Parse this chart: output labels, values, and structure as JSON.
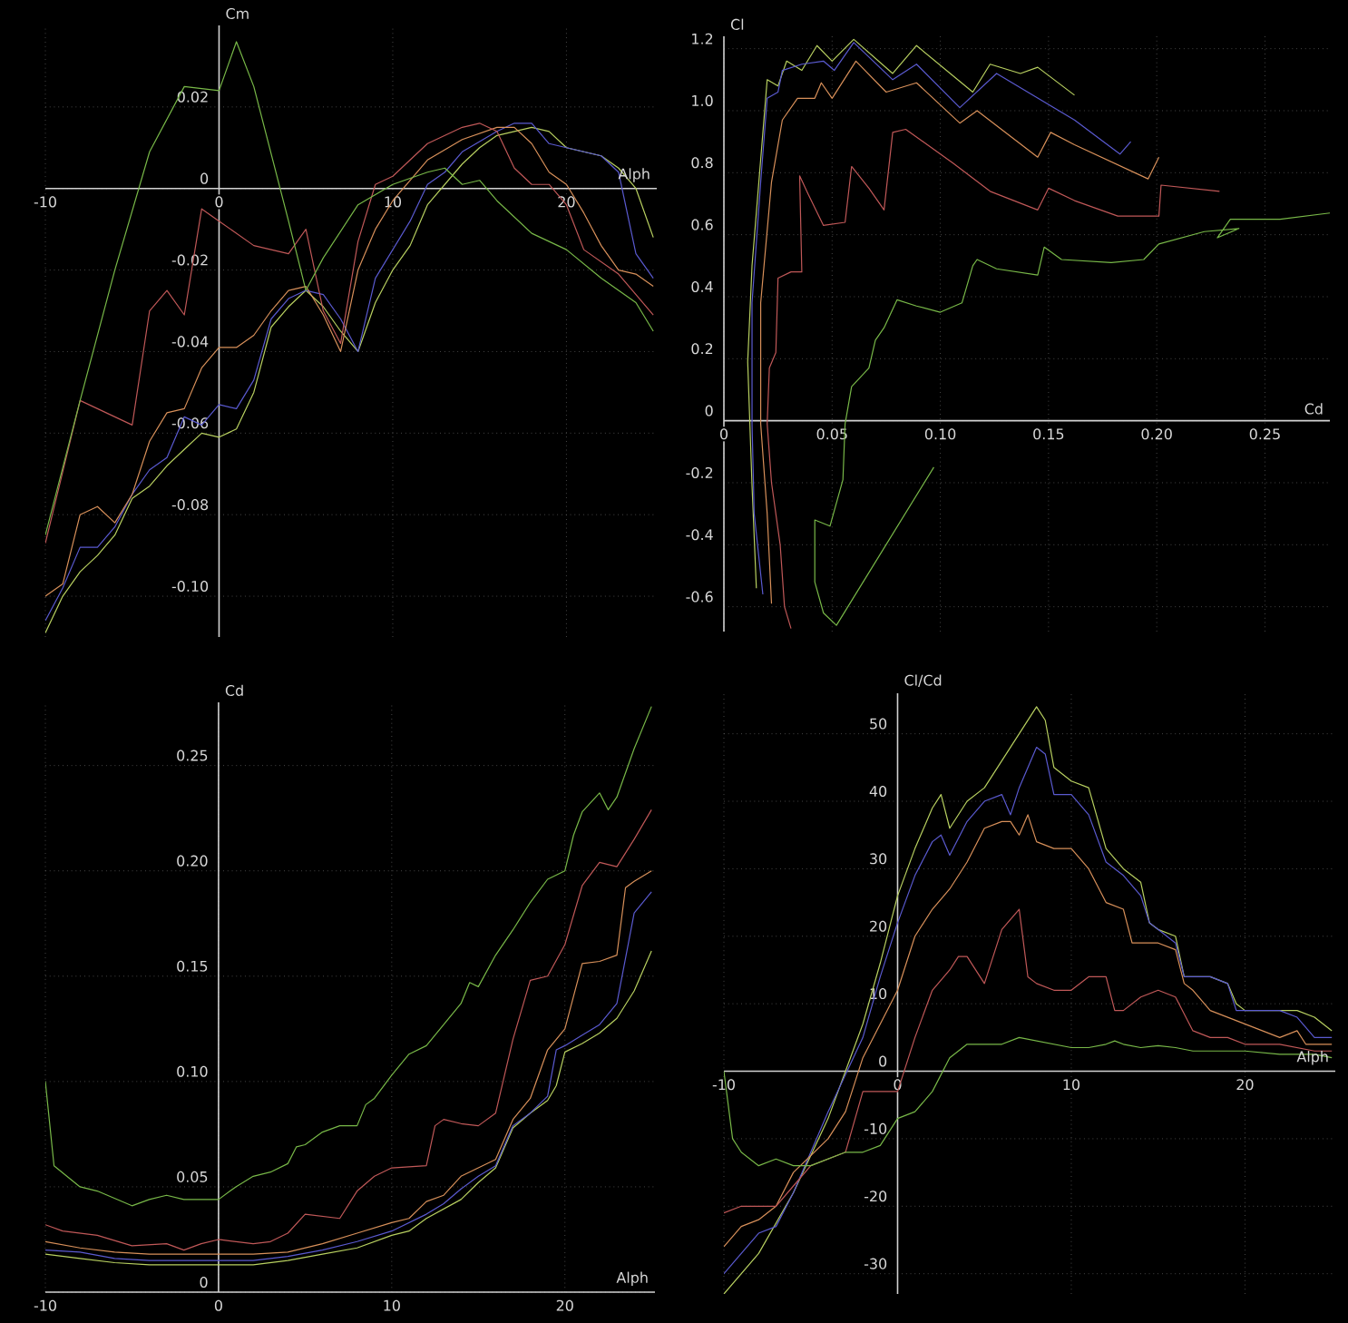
{
  "chart_data": [
    {
      "type": "line",
      "xlabel": "Alph",
      "ylabel": "Cm",
      "xlim": [
        -10,
        25.2
      ],
      "ylim": [
        -0.11,
        0.04
      ],
      "grid": true,
      "xticks": [
        -10,
        0,
        10,
        20
      ],
      "yticks": [
        0.02,
        0,
        -0.02,
        -0.04,
        -0.06,
        -0.08,
        {
          "value": -0.1,
          "label": "-0.10"
        }
      ],
      "series": [
        {
          "color": "#b8d060",
          "x": [
            -10,
            -9,
            -8,
            -7,
            -6,
            -5,
            -4,
            -3,
            -2,
            -1,
            0,
            1,
            2,
            3,
            4,
            5,
            6,
            7,
            8,
            9,
            10,
            11,
            12,
            13,
            14,
            15,
            16,
            17,
            18,
            19,
            20,
            22,
            23,
            24,
            25
          ],
          "values": [
            -0.109,
            -0.1,
            -0.094,
            -0.09,
            -0.085,
            -0.076,
            -0.073,
            -0.068,
            -0.064,
            -0.06,
            -0.061,
            -0.059,
            -0.05,
            -0.034,
            -0.029,
            -0.025,
            -0.029,
            -0.035,
            -0.04,
            -0.028,
            -0.02,
            -0.014,
            -0.004,
            0.001,
            0.006,
            0.01,
            0.013,
            0.014,
            0.015,
            0.014,
            0.01,
            0.008,
            0.005,
            0,
            -0.012
          ]
        },
        {
          "color": "#5a5ad0",
          "x": [
            -10,
            -9,
            -8,
            -7,
            -6,
            -5,
            -4,
            -3,
            -2,
            -1,
            0,
            1,
            2,
            3,
            4,
            5,
            6,
            7,
            8,
            9,
            10,
            11,
            12,
            13,
            14,
            16,
            17,
            18,
            19,
            20,
            22,
            23,
            24,
            25
          ],
          "values": [
            -0.106,
            -0.098,
            -0.088,
            -0.088,
            -0.083,
            -0.075,
            -0.069,
            -0.066,
            -0.056,
            -0.058,
            -0.053,
            -0.054,
            -0.047,
            -0.032,
            -0.027,
            -0.025,
            -0.026,
            -0.032,
            -0.04,
            -0.022,
            -0.015,
            -0.008,
            0.001,
            0.004,
            0.009,
            0.014,
            0.016,
            0.016,
            0.011,
            0.01,
            0.008,
            0.004,
            -0.016,
            -0.022
          ]
        },
        {
          "color": "#d8905a",
          "x": [
            -10,
            -9,
            -8,
            -7,
            -6,
            -5,
            -4,
            -3,
            -2,
            -1,
            0,
            1,
            2,
            3,
            4,
            5,
            6,
            7,
            8,
            9,
            10,
            12,
            14,
            16,
            17,
            18,
            19,
            20,
            21,
            22,
            23,
            24,
            25
          ],
          "values": [
            -0.1,
            -0.097,
            -0.08,
            -0.078,
            -0.082,
            -0.075,
            -0.062,
            -0.055,
            -0.054,
            -0.044,
            -0.039,
            -0.039,
            -0.036,
            -0.03,
            -0.025,
            -0.024,
            -0.031,
            -0.04,
            -0.02,
            -0.01,
            -0.003,
            0.007,
            0.012,
            0.015,
            0.015,
            0.011,
            0.004,
            0.001,
            -0.006,
            -0.014,
            -0.02,
            -0.021,
            -0.024
          ]
        },
        {
          "color": "#c05858",
          "x": [
            -10,
            -8,
            -6,
            -5,
            -4,
            -3,
            -2,
            -1,
            0,
            2,
            4,
            5,
            6,
            7,
            8,
            9,
            10,
            12,
            14,
            15,
            16,
            17,
            18,
            19,
            20,
            21,
            23,
            25
          ],
          "values": [
            -0.087,
            -0.052,
            -0.056,
            -0.058,
            -0.03,
            -0.025,
            -0.031,
            -0.005,
            -0.008,
            -0.014,
            -0.016,
            -0.01,
            -0.03,
            -0.038,
            -0.013,
            0.001,
            0.003,
            0.011,
            0.015,
            0.016,
            0.014,
            0.005,
            0.001,
            0.001,
            -0.004,
            -0.015,
            -0.021,
            -0.031
          ]
        },
        {
          "color": "#78b848",
          "x": [
            -10,
            -8,
            -6,
            -4,
            -2,
            0,
            1,
            2,
            4,
            5,
            6,
            8,
            10,
            12,
            13,
            14,
            15,
            16,
            18,
            20,
            22,
            24,
            25
          ],
          "values": [
            -0.085,
            -0.052,
            -0.02,
            0.009,
            0.025,
            0.024,
            0.036,
            0.025,
            -0.008,
            -0.025,
            -0.017,
            -0.004,
            0.001,
            0.004,
            0.005,
            0.001,
            0.002,
            -0.003,
            -0.011,
            -0.015,
            -0.022,
            -0.028,
            -0.035
          ]
        }
      ]
    },
    {
      "type": "line",
      "xlabel": "Cd",
      "ylabel": "Cl",
      "xlim": [
        0,
        0.28
      ],
      "ylim": [
        -0.68,
        1.24
      ],
      "grid": true,
      "xticks": [
        0,
        0.05,
        {
          "value": 0.1,
          "label": "0.10"
        },
        0.15,
        {
          "value": 0.2,
          "label": "0.20"
        },
        0.25
      ],
      "yticks": [
        1.2,
        {
          "value": 1.0,
          "label": "1.0"
        },
        0.8,
        0.6,
        0.4,
        0.2,
        0,
        -0.2,
        -0.4,
        -0.6
      ],
      "series": [
        {
          "color": "#b8d060",
          "x": [
            0.015,
            0.013,
            0.011,
            0.013,
            0.02,
            0.025,
            0.029,
            0.036,
            0.043,
            0.05,
            0.06,
            0.078,
            0.089,
            0.115,
            0.123,
            0.137,
            0.145,
            0.162
          ],
          "values": [
            -0.54,
            -0.21,
            0.19,
            0.5,
            1.1,
            1.08,
            1.16,
            1.13,
            1.21,
            1.16,
            1.23,
            1.12,
            1.21,
            1.06,
            1.15,
            1.12,
            1.14,
            1.05
          ]
        },
        {
          "color": "#5a5ad0",
          "x": [
            0.018,
            0.014,
            0.013,
            0.013,
            0.017,
            0.02,
            0.025,
            0.027,
            0.036,
            0.046,
            0.051,
            0.06,
            0.078,
            0.089,
            0.109,
            0.126,
            0.162,
            0.183,
            0.188
          ],
          "values": [
            -0.56,
            -0.3,
            -0.01,
            0.38,
            0.77,
            1.04,
            1.06,
            1.13,
            1.15,
            1.16,
            1.13,
            1.22,
            1.1,
            1.15,
            1.01,
            1.12,
            0.97,
            0.86,
            0.9
          ]
        },
        {
          "color": "#d8905a",
          "x": [
            0.022,
            0.02,
            0.017,
            0.017,
            0.022,
            0.027,
            0.034,
            0.042,
            0.045,
            0.05,
            0.061,
            0.075,
            0.089,
            0.109,
            0.117,
            0.145,
            0.151,
            0.162,
            0.196,
            0.201
          ],
          "values": [
            -0.59,
            -0.3,
            -0.01,
            0.38,
            0.77,
            0.97,
            1.04,
            1.04,
            1.09,
            1.04,
            1.16,
            1.06,
            1.09,
            0.96,
            1.0,
            0.85,
            0.93,
            0.89,
            0.78,
            0.85
          ]
        },
        {
          "color": "#c05858",
          "x": [
            0.031,
            0.028,
            0.026,
            0.022,
            0.02,
            0.021,
            0.024,
            0.025,
            0.031,
            0.036,
            0.035,
            0.039,
            0.046,
            0.056,
            0.059,
            0.067,
            0.074,
            0.078,
            0.084,
            0.106,
            0.123,
            0.145,
            0.15,
            0.162,
            0.182,
            0.201,
            0.202,
            0.229
          ],
          "values": [
            -0.67,
            -0.6,
            -0.4,
            -0.2,
            -0.01,
            0.17,
            0.22,
            0.46,
            0.48,
            0.48,
            0.79,
            0.73,
            0.63,
            0.64,
            0.82,
            0.75,
            0.68,
            0.93,
            0.94,
            0.83,
            0.74,
            0.68,
            0.75,
            0.71,
            0.66,
            0.66,
            0.76,
            0.74
          ]
        },
        {
          "color": "#78b848",
          "x": [
            0.097,
            0.052,
            0.046,
            0.042,
            0.042,
            0.049,
            0.055,
            0.056,
            0.059,
            0.067,
            0.07,
            0.074,
            0.08,
            0.089,
            0.1,
            0.11,
            0.115,
            0.117,
            0.126,
            0.145,
            0.148,
            0.156,
            0.179,
            0.194,
            0.201,
            0.222,
            0.238,
            0.228,
            0.234,
            0.257,
            0.28
          ],
          "values": [
            -0.15,
            -0.66,
            -0.62,
            -0.52,
            -0.32,
            -0.34,
            -0.19,
            -0.01,
            0.11,
            0.17,
            0.26,
            0.3,
            0.39,
            0.37,
            0.35,
            0.38,
            0.5,
            0.52,
            0.49,
            0.47,
            0.56,
            0.52,
            0.51,
            0.52,
            0.57,
            0.61,
            0.62,
            0.59,
            0.65,
            0.65,
            0.67
          ]
        }
      ]
    },
    {
      "type": "line",
      "xlabel": "Alph",
      "ylabel": "Cd",
      "xlim": [
        -10,
        25.2
      ],
      "ylim": [
        0,
        0.28
      ],
      "grid": true,
      "xticks": [
        -10,
        0,
        10,
        20
      ],
      "yticks": [
        0,
        0.05,
        {
          "value": 0.1,
          "label": "0.10"
        },
        0.15,
        {
          "value": 0.2,
          "label": "0.20"
        },
        0.25
      ],
      "series": [
        {
          "color": "#b8d060",
          "x": [
            -10,
            -8,
            -6,
            -4,
            -2,
            0,
            2,
            4,
            6,
            8,
            10,
            11,
            12,
            14,
            15,
            16,
            17,
            18,
            19,
            19.5,
            20,
            21,
            22,
            23,
            24,
            25
          ],
          "values": [
            0.018,
            0.016,
            0.014,
            0.013,
            0.013,
            0.013,
            0.013,
            0.015,
            0.018,
            0.021,
            0.027,
            0.029,
            0.035,
            0.044,
            0.052,
            0.059,
            0.078,
            0.085,
            0.091,
            0.098,
            0.114,
            0.118,
            0.123,
            0.13,
            0.143,
            0.162
          ]
        },
        {
          "color": "#5a5ad0",
          "x": [
            -10,
            -8,
            -6,
            -4,
            -2,
            0,
            2,
            4,
            6,
            8,
            10,
            12,
            13,
            14,
            15,
            16,
            17,
            18,
            19,
            19.5,
            20,
            21,
            22,
            23,
            24,
            25
          ],
          "values": [
            0.02,
            0.019,
            0.016,
            0.015,
            0.015,
            0.015,
            0.015,
            0.017,
            0.02,
            0.024,
            0.029,
            0.037,
            0.042,
            0.049,
            0.055,
            0.06,
            0.079,
            0.085,
            0.093,
            0.115,
            0.117,
            0.122,
            0.127,
            0.137,
            0.18,
            0.19
          ]
        },
        {
          "color": "#d8905a",
          "x": [
            -10,
            -8,
            -6,
            -4,
            -2,
            0,
            2,
            4,
            6,
            8,
            10,
            11,
            12,
            13,
            14,
            15,
            16,
            17,
            18,
            19,
            20,
            21,
            22,
            23,
            23.5,
            24,
            25
          ],
          "values": [
            0.024,
            0.021,
            0.019,
            0.018,
            0.018,
            0.018,
            0.018,
            0.019,
            0.023,
            0.028,
            0.033,
            0.035,
            0.043,
            0.046,
            0.055,
            0.059,
            0.063,
            0.082,
            0.092,
            0.115,
            0.125,
            0.156,
            0.157,
            0.16,
            0.192,
            0.195,
            0.2
          ]
        },
        {
          "color": "#c05858",
          "x": [
            -10,
            -9,
            -7,
            -5,
            -3,
            -2,
            -1,
            0,
            2,
            3,
            4,
            5,
            6,
            7,
            8,
            9,
            10,
            12,
            12.5,
            13,
            14,
            15,
            16,
            17,
            18,
            19,
            20,
            21,
            22,
            23,
            24,
            25
          ],
          "values": [
            0.032,
            0.029,
            0.027,
            0.022,
            0.023,
            0.02,
            0.023,
            0.025,
            0.023,
            0.024,
            0.028,
            0.037,
            0.036,
            0.035,
            0.048,
            0.055,
            0.059,
            0.06,
            0.079,
            0.082,
            0.08,
            0.079,
            0.085,
            0.12,
            0.148,
            0.15,
            0.165,
            0.193,
            0.204,
            0.202,
            0.215,
            0.229
          ]
        },
        {
          "color": "#78b848",
          "x": [
            -10,
            -9.5,
            -8,
            -7,
            -5,
            -4,
            -3,
            -2,
            0,
            1,
            2,
            3,
            4,
            4.5,
            5,
            6,
            7,
            8,
            8.5,
            9,
            10,
            11,
            12,
            13,
            14,
            14.5,
            15,
            16,
            17,
            18,
            19,
            20,
            20.5,
            21,
            22,
            22.5,
            23,
            24,
            25
          ],
          "values": [
            0.1,
            0.06,
            0.05,
            0.048,
            0.041,
            0.044,
            0.046,
            0.044,
            0.044,
            0.05,
            0.055,
            0.057,
            0.061,
            0.069,
            0.07,
            0.076,
            0.079,
            0.079,
            0.089,
            0.092,
            0.103,
            0.113,
            0.117,
            0.127,
            0.137,
            0.147,
            0.145,
            0.16,
            0.172,
            0.185,
            0.196,
            0.2,
            0.217,
            0.228,
            0.237,
            0.229,
            0.235,
            0.258,
            0.278
          ]
        }
      ]
    },
    {
      "type": "line",
      "xlabel": "Alph",
      "ylabel": "Cl/Cd",
      "xlim": [
        -10,
        25.2
      ],
      "ylim": [
        -33,
        56
      ],
      "grid": true,
      "xticks": [
        -10,
        0,
        10,
        20
      ],
      "yticks": [
        50,
        40,
        30,
        20,
        10,
        0,
        -10,
        -20,
        -30
      ],
      "series": [
        {
          "color": "#b8d060",
          "x": [
            -10,
            -8,
            -6,
            -4,
            -3,
            -2,
            -1,
            0,
            1,
            2,
            2.5,
            3,
            4,
            5,
            6,
            7,
            8,
            8.5,
            9,
            10,
            11,
            12,
            13,
            14,
            14.5,
            15,
            16,
            16.5,
            18,
            19,
            19.5,
            20,
            22,
            23,
            24,
            25
          ],
          "values": [
            -33,
            -27,
            -18,
            -7,
            0,
            7,
            16,
            26,
            33,
            39,
            41,
            36,
            40,
            42,
            46,
            50,
            54,
            52,
            45,
            43,
            42,
            33,
            30,
            28,
            22,
            21,
            20,
            14,
            14,
            13,
            10,
            9,
            9,
            9,
            8,
            6
          ]
        },
        {
          "color": "#5a5ad0",
          "x": [
            -10,
            -9,
            -8,
            -7,
            -6,
            -4,
            -2,
            -1,
            0,
            1,
            2,
            2.5,
            3,
            4,
            5,
            6,
            6.5,
            7,
            8,
            8.5,
            9,
            10,
            11,
            12,
            13,
            14,
            14.5,
            15,
            16,
            16.5,
            18,
            19,
            19.5,
            20,
            22,
            23,
            24,
            25
          ],
          "values": [
            -30,
            -27,
            -24,
            -23,
            -18,
            -6,
            5,
            14,
            22,
            29,
            34,
            35,
            32,
            37,
            40,
            41,
            38,
            42,
            48,
            47,
            41,
            41,
            38,
            31,
            29,
            26,
            22,
            21,
            19,
            14,
            14,
            13,
            9,
            9,
            9,
            8,
            5,
            5
          ]
        },
        {
          "color": "#d8905a",
          "x": [
            -10,
            -9,
            -8,
            -7,
            -6,
            -4,
            -3,
            -2,
            -1,
            0,
            1,
            2,
            3,
            4,
            5,
            6,
            6.5,
            7,
            7.5,
            8,
            9,
            10,
            11,
            12,
            13,
            13.5,
            15,
            16,
            16.5,
            17,
            18,
            19,
            20,
            21,
            22,
            23,
            23.5,
            25
          ],
          "values": [
            -26,
            -23,
            -22,
            -20,
            -15,
            -10,
            -6,
            2,
            7,
            12,
            20,
            24,
            27,
            31,
            36,
            37,
            37,
            35,
            38,
            34,
            33,
            33,
            30,
            25,
            24,
            19,
            19,
            18,
            13,
            12,
            9,
            8,
            7,
            6,
            5,
            6,
            4,
            4
          ]
        },
        {
          "color": "#c05858",
          "x": [
            -10,
            -9,
            -8,
            -7,
            -6,
            -5,
            -4,
            -3,
            -2,
            -1,
            0,
            1,
            2,
            3,
            3.5,
            4,
            5,
            6,
            7,
            7.5,
            8,
            9,
            10,
            11,
            12,
            12.5,
            13,
            14,
            15,
            16,
            17,
            18,
            19,
            20,
            22,
            24,
            25
          ],
          "values": [
            -21,
            -20,
            -20,
            -20,
            -17,
            -14,
            -13,
            -12,
            -3,
            -3,
            -3,
            5,
            12,
            15,
            17,
            17,
            13,
            21,
            24,
            14,
            13,
            12,
            12,
            14,
            14,
            9,
            9,
            11,
            12,
            11,
            6,
            5,
            5,
            4,
            4,
            3,
            3
          ]
        },
        {
          "color": "#78b848",
          "x": [
            -10,
            -9.5,
            -9,
            -8,
            -7,
            -6,
            -5,
            -4,
            -3,
            -2,
            -1,
            0,
            1,
            2,
            3,
            4,
            5,
            6,
            7,
            8,
            9,
            10,
            11,
            12,
            12.5,
            13,
            14,
            15,
            16,
            17,
            18,
            20,
            22,
            24,
            25
          ],
          "values": [
            0,
            -10,
            -12,
            -14,
            -13,
            -14,
            -14,
            -13,
            -12,
            -12,
            -11,
            -7,
            -6,
            -3,
            2,
            4,
            4,
            4,
            5,
            4.5,
            4,
            3.5,
            3.5,
            4,
            4.5,
            4,
            3.5,
            3.8,
            3.5,
            3,
            3,
            3,
            2.5,
            2.5,
            2
          ]
        }
      ]
    }
  ]
}
